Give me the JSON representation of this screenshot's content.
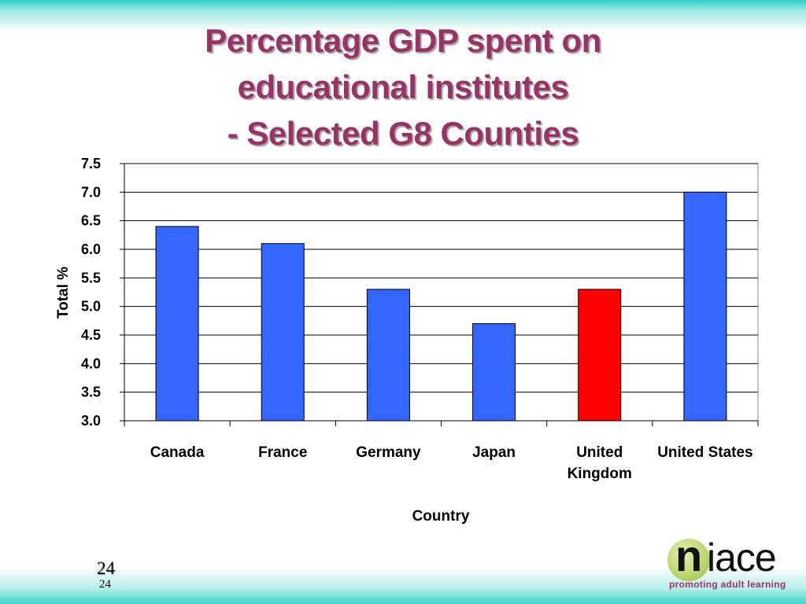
{
  "chart_data": {
    "type": "bar",
    "title": [
      "Percentage GDP spent on",
      "educational institutes",
      "- Selected G8 Counties"
    ],
    "xlabel": "Country",
    "ylabel": "Total %",
    "ylim": [
      3.0,
      7.5
    ],
    "yticks": [
      "7.5",
      "7.0",
      "6.5",
      "6.0",
      "5.5",
      "5.0",
      "4.5",
      "4.0",
      "3.5",
      "3.0"
    ],
    "grid": true,
    "categories": [
      [
        "Canada"
      ],
      [
        "France"
      ],
      [
        "Germany"
      ],
      [
        "Japan"
      ],
      [
        "United",
        "Kingdom"
      ],
      [
        "United States"
      ]
    ],
    "values": [
      6.4,
      6.1,
      5.3,
      4.7,
      5.3,
      7.0
    ],
    "bar_colors": [
      "#3366ff",
      "#3366ff",
      "#3366ff",
      "#3366ff",
      "#ff0000",
      "#3366ff"
    ]
  },
  "footer": {
    "page_number": "24",
    "page_number_small": "24"
  },
  "logo": {
    "n": "n",
    "rest": "iace",
    "tagline": "promoting adult learning"
  }
}
